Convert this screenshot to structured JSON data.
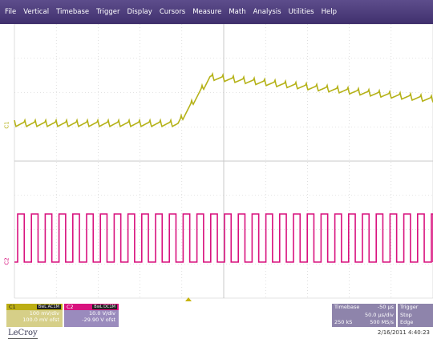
{
  "menu": [
    "File",
    "Vertical",
    "Timebase",
    "Trigger",
    "Display",
    "Cursors",
    "Measure",
    "Math",
    "Analysis",
    "Utilities",
    "Help"
  ],
  "colors": {
    "c1_trace": "#b5b218",
    "c2_trace": "#d8127e",
    "grid": "#c8c8c8",
    "menubar": "#4a3a7a"
  },
  "channels": {
    "c1": {
      "label": "C1",
      "tags": "BwL AC1M",
      "scale": "100 mV/div",
      "offset": "100.0 mV ofst"
    },
    "c2": {
      "label": "C2",
      "tags": "BwL DC1M",
      "scale": "10.0 V/div",
      "offset": "-29.90 V ofst"
    }
  },
  "timebase": {
    "title": "Timebase",
    "delay": "-50 µs",
    "scale": "50.0 µs/div",
    "samples": "250 kS",
    "rate": "500 MS/s"
  },
  "trigger": {
    "title": "Trigger",
    "mode": "Stop",
    "type": "Edge"
  },
  "footer": {
    "brand": "LeCroy",
    "datetime": "2/16/2011 4:40:23"
  }
}
